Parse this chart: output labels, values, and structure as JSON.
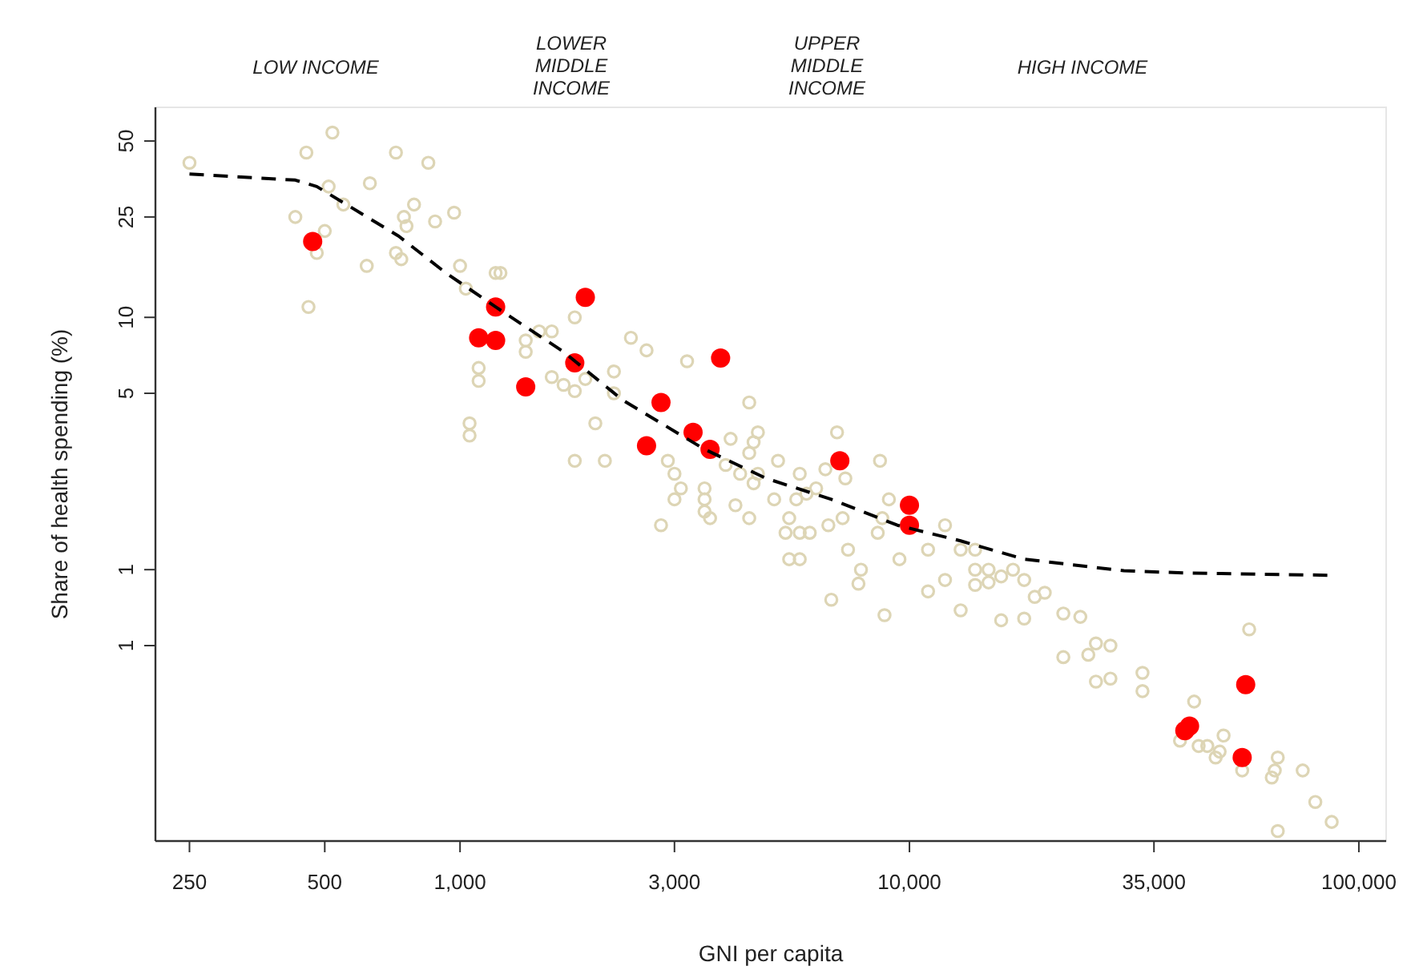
{
  "chart_data": {
    "type": "scatter",
    "xlabel": "GNI per capita",
    "ylabel": "Share of health spending (%)",
    "log": "xy",
    "xlim": [
      210,
      115000
    ],
    "ylim": [
      0.084,
      68
    ],
    "xticks": [
      250,
      500,
      {
        "value": 1000,
        "label": "1,000"
      },
      {
        "value": 3000,
        "label": "3,000"
      },
      {
        "value": 10000,
        "label": "10,000"
      },
      {
        "value": 35000,
        "label": "35,000"
      },
      {
        "value": 100000,
        "label": "100,000"
      }
    ],
    "yticks": [
      50,
      25,
      10,
      5,
      1,
      {
        "value": 0.5,
        "label": "1"
      }
    ],
    "grid": false,
    "marker": "circle",
    "annotations": [
      "LOW INCOME",
      "LOWER MIDDLE INCOME",
      "UPPER MIDDLE INCOME",
      "HIGH INCOME"
    ],
    "series": [
      {
        "color": "#ddd5b5",
        "x": [
          250,
          455,
          520,
          720,
          850,
          510,
          630,
          430,
          500,
          550,
          480,
          790,
          750,
          760,
          880,
          970,
          720,
          740,
          620,
          460,
          1000,
          1030,
          1200,
          1230,
          1800,
          1600,
          1500,
          1400,
          1400,
          1100,
          1100,
          1600,
          1700,
          1800,
          1900,
          2200,
          2200,
          2000,
          1050,
          1050,
          1800,
          2100,
          2400,
          2600,
          3200,
          4400,
          4600,
          4500,
          4400,
          4000,
          2900,
          3000,
          3100,
          3000,
          3500,
          3500,
          3500,
          3600,
          2800,
          4100,
          4400,
          3900,
          4200,
          4600,
          4500,
          5000,
          5100,
          5700,
          5900,
          6200,
          5600,
          5400,
          5300,
          5700,
          6000,
          5400,
          5700,
          6900,
          8600,
          7200,
          6500,
          7100,
          6600,
          8700,
          8500,
          9000,
          7300,
          7800,
          7700,
          6700,
          9500,
          8800,
          11000,
          12000,
          13000,
          12000,
          11000,
          14000,
          14000,
          15000,
          16000,
          15000,
          14000,
          18000,
          17000,
          13000,
          16000,
          18000,
          19000,
          20000,
          22000,
          24000,
          22000,
          25000,
          26000,
          28000,
          26000,
          28000,
          33000,
          33000,
          57000,
          43000,
          40000,
          50000,
          44000,
          46000,
          48000,
          49000,
          55000,
          66000,
          64000,
          65000,
          75000,
          80000,
          87000,
          66000
        ],
        "values": [
          41,
          45,
          54,
          45,
          41,
          33,
          34,
          25,
          22,
          28,
          18,
          28,
          25,
          23,
          24,
          26,
          18,
          17,
          16,
          11,
          16,
          13,
          15,
          15,
          10,
          8.8,
          8.8,
          8.1,
          7.3,
          6.3,
          5.6,
          5.8,
          5.4,
          5.1,
          5.7,
          6.1,
          5.0,
          3.8,
          3.8,
          3.4,
          2.7,
          2.7,
          8.3,
          7.4,
          6.7,
          4.6,
          3.5,
          3.2,
          2.9,
          3.3,
          2.7,
          2.4,
          2.1,
          1.9,
          2.1,
          1.9,
          1.7,
          1.6,
          1.5,
          1.8,
          1.6,
          2.6,
          2.4,
          2.4,
          2.2,
          1.9,
          2.7,
          2.4,
          2.0,
          2.1,
          1.9,
          1.6,
          1.4,
          1.4,
          1.4,
          1.1,
          1.1,
          3.5,
          2.7,
          2.3,
          2.5,
          1.6,
          1.5,
          1.6,
          1.4,
          1.9,
          1.2,
          1.0,
          0.88,
          0.76,
          1.1,
          0.66,
          1.2,
          1.5,
          1.2,
          0.91,
          0.82,
          1.2,
          1.0,
          1.0,
          0.94,
          0.89,
          0.87,
          0.91,
          1.0,
          0.69,
          0.63,
          0.64,
          0.78,
          0.81,
          0.67,
          0.65,
          0.45,
          0.46,
          0.51,
          0.5,
          0.36,
          0.37,
          0.39,
          0.33,
          0.58,
          0.3,
          0.21,
          0.22,
          0.2,
          0.2,
          0.18,
          0.19,
          0.16,
          0.18,
          0.15,
          0.16,
          0.16,
          0.12,
          0.1,
          0.092
        ]
      },
      {
        "color": "#ff0000",
        "x": [
          470,
          1200,
          1100,
          1200,
          1900,
          1800,
          1400,
          2800,
          2600,
          3300,
          3600,
          3800,
          7000,
          10000,
          10000,
          56000,
          41000,
          42000,
          55000
        ],
        "values": [
          20,
          11,
          8.3,
          8.1,
          12,
          6.6,
          5.3,
          4.6,
          3.1,
          3.5,
          3.0,
          6.9,
          2.7,
          1.8,
          1.5,
          0.35,
          0.23,
          0.24,
          0.18
        ]
      },
      {
        "type": "line",
        "color": "#000000",
        "line_style": "dashed",
        "marker": "none",
        "x": [
          250,
          430,
          480,
          730,
          930,
          1200,
          1700,
          2300,
          3500,
          4800,
          6700,
          9400,
          13000,
          18000,
          30000,
          41000,
          86000
        ],
        "values": [
          37,
          35,
          33,
          21,
          15,
          11,
          7.3,
          4.7,
          3.0,
          2.3,
          1.9,
          1.5,
          1.3,
          1.1,
          0.99,
          0.97,
          0.95
        ]
      }
    ]
  }
}
